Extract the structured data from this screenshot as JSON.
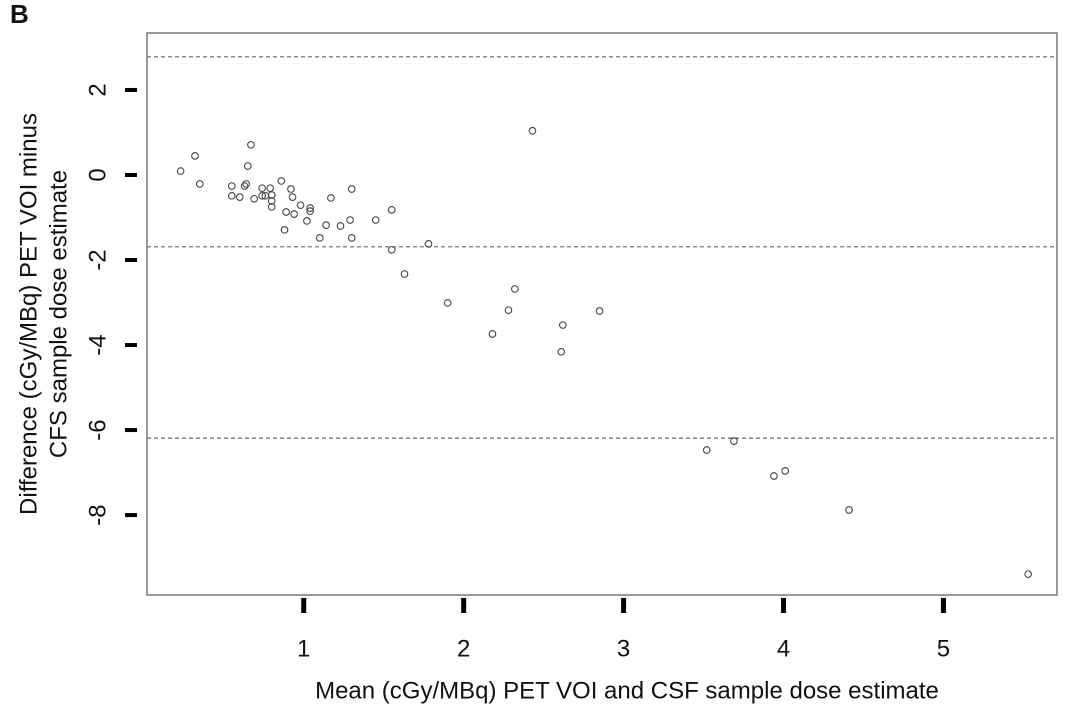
{
  "chart_data": {
    "type": "scatter",
    "panel_label": "B",
    "x_label": "Mean (cGy/MBq) PET VOI and CSF sample dose estimate",
    "y_label": [
      "Difference (cGy/MBq) PET VOI minus",
      "CFS sample dose estimate"
    ],
    "x": [
      0.23,
      0.32,
      0.35,
      0.55,
      0.55,
      0.6,
      0.63,
      0.64,
      0.65,
      0.67,
      0.69,
      0.74,
      0.74,
      0.76,
      0.79,
      0.8,
      0.8,
      0.8,
      0.86,
      0.88,
      0.89,
      0.92,
      0.93,
      0.94,
      0.98,
      1.02,
      1.04,
      1.04,
      1.1,
      1.14,
      1.17,
      1.23,
      1.29,
      1.3,
      1.3,
      1.45,
      1.55,
      1.55,
      1.78,
      1.63,
      1.9,
      2.18,
      2.28,
      2.32,
      2.43,
      2.62,
      2.61,
      2.85,
      3.52,
      3.69,
      3.94,
      4.01,
      4.41,
      5.53
    ],
    "values": [
      0.09,
      0.45,
      -0.21,
      -0.26,
      -0.49,
      -0.52,
      -0.26,
      -0.21,
      0.21,
      0.71,
      -0.56,
      -0.31,
      -0.49,
      -0.49,
      -0.31,
      -0.47,
      -0.61,
      -0.75,
      -0.14,
      -1.29,
      -0.87,
      -0.33,
      -0.52,
      -0.92,
      -0.71,
      -1.08,
      -0.78,
      -0.85,
      -1.48,
      -1.18,
      -0.54,
      -1.2,
      -1.06,
      -1.48,
      -0.33,
      -1.06,
      -0.82,
      -1.76,
      -1.62,
      -2.33,
      -3.01,
      -3.74,
      -3.18,
      -2.68,
      1.04,
      -3.53,
      -4.16,
      -3.2,
      -6.47,
      -6.26,
      -7.08,
      -6.96,
      -7.88,
      -9.39
    ],
    "color": "#444444",
    "hlines": [
      2.78,
      -1.69,
      -6.19
    ],
    "xlim": [
      0.02,
      5.71
    ],
    "ylim": [
      -9.88,
      3.34
    ],
    "xticks": [
      1,
      2,
      3,
      4,
      5
    ],
    "yticks": [
      -8,
      -6,
      -4,
      -2,
      0,
      2
    ]
  }
}
